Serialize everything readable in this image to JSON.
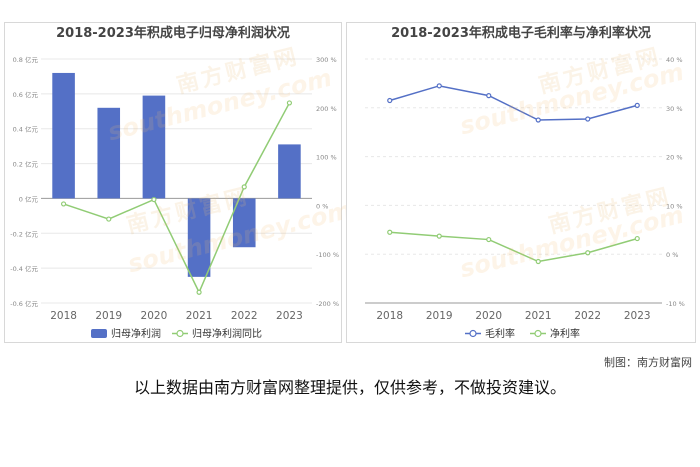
{
  "credit": "制图：南方财富网",
  "disclaimer": "以上数据由南方财富网整理提供，仅供参考，不做投资建议。",
  "watermark": {
    "cn": "南方财富网",
    "en": "southmoney.com"
  },
  "colors": {
    "bar": "#5470c6",
    "line_green": "#91cc75",
    "line_blue": "#5470c6"
  },
  "chart_data": [
    {
      "type": "bar",
      "title": "2018-2023年积成电子归母净利润状况",
      "categories": [
        "2018",
        "2019",
        "2020",
        "2021",
        "2022",
        "2023"
      ],
      "ylim": [
        -0.6,
        0.8
      ],
      "y_ticks": [
        "-0.6 亿元",
        "-0.4 亿元",
        "-0.2 亿元",
        "0 亿元",
        "0.2 亿元",
        "0.4 亿元",
        "0.6 亿元",
        "0.8 亿元"
      ],
      "y_tick_values": [
        -0.6,
        -0.4,
        -0.2,
        0,
        0.2,
        0.4,
        0.6,
        0.8
      ],
      "y2lim": [
        -200,
        300
      ],
      "y2_ticks": [
        "-200 %",
        "-100 %",
        "0 %",
        "100 %",
        "200 %",
        "300 %"
      ],
      "y2_tick_values": [
        -200,
        -100,
        0,
        100,
        200,
        300
      ],
      "series": [
        {
          "name": "归母净利润",
          "kind": "bar",
          "axis": "left",
          "values": [
            0.72,
            0.52,
            0.59,
            -0.45,
            -0.28,
            0.31
          ]
        },
        {
          "name": "归母净利润同比",
          "kind": "line",
          "axis": "right",
          "values": [
            3,
            -28,
            12,
            -178,
            38,
            210
          ]
        }
      ],
      "legend": "bottom-center"
    },
    {
      "type": "line",
      "title": "2018-2023年积成电子毛利率与净利率状况",
      "categories": [
        "2018",
        "2019",
        "2020",
        "2021",
        "2022",
        "2023"
      ],
      "y2lim": [
        -10,
        40
      ],
      "y2_ticks": [
        "-10 %",
        "0 %",
        "10 %",
        "20 %",
        "30 %",
        "40 %"
      ],
      "y2_tick_values": [
        -10,
        0,
        10,
        20,
        30,
        40
      ],
      "series": [
        {
          "name": "毛利率",
          "values": [
            31.5,
            34.5,
            32.5,
            27.5,
            27.7,
            30.5
          ]
        },
        {
          "name": "净利率",
          "values": [
            4.5,
            3.7,
            3.0,
            -1.5,
            0.3,
            3.2
          ]
        }
      ],
      "legend": "bottom-center"
    }
  ]
}
